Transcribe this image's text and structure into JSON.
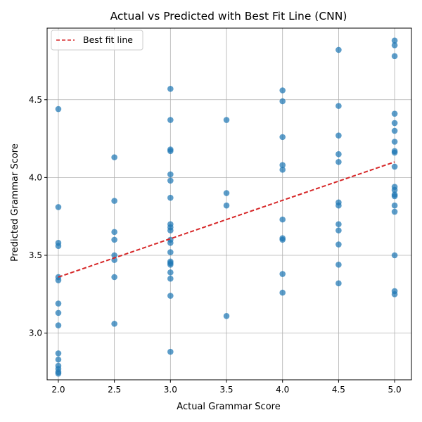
{
  "chart_data": {
    "type": "scatter",
    "title": "Actual vs Predicted with Best Fit Line (CNN)",
    "xlabel": "Actual Grammar Score",
    "ylabel": "Predicted Grammar Score",
    "xlim": [
      1.9,
      5.15
    ],
    "ylim": [
      2.7,
      4.96
    ],
    "x_ticks": [
      2.0,
      2.5,
      3.0,
      3.5,
      4.0,
      4.5,
      5.0
    ],
    "x_tick_labels": [
      "2.0",
      "2.5",
      "3.0",
      "3.5",
      "4.0",
      "4.5",
      "5.0"
    ],
    "y_ticks": [
      3.0,
      3.5,
      4.0,
      4.5
    ],
    "y_tick_labels": [
      "3.0",
      "3.5",
      "4.0",
      "4.5"
    ],
    "grid": true,
    "legend_position": "top-left",
    "point_color": "#1f77b4",
    "line_color": "#d62728",
    "best_fit_line": {
      "label": "Best fit line",
      "x_range": [
        2.0,
        5.0
      ],
      "y_range": [
        3.36,
        4.1
      ]
    },
    "points": [
      [
        2.0,
        4.44
      ],
      [
        2.0,
        3.81
      ],
      [
        2.0,
        3.58
      ],
      [
        2.0,
        3.56
      ],
      [
        2.0,
        3.36
      ],
      [
        2.0,
        3.34
      ],
      [
        2.0,
        3.19
      ],
      [
        2.0,
        3.13
      ],
      [
        2.0,
        3.05
      ],
      [
        2.0,
        2.87
      ],
      [
        2.0,
        2.83
      ],
      [
        2.0,
        2.79
      ],
      [
        2.0,
        2.77
      ],
      [
        2.0,
        2.75
      ],
      [
        2.0,
        2.74
      ],
      [
        2.5,
        4.13
      ],
      [
        2.5,
        3.85
      ],
      [
        2.5,
        3.65
      ],
      [
        2.5,
        3.6
      ],
      [
        2.5,
        3.5
      ],
      [
        2.5,
        3.47
      ],
      [
        2.5,
        3.36
      ],
      [
        2.5,
        3.06
      ],
      [
        3.0,
        4.57
      ],
      [
        3.0,
        4.37
      ],
      [
        3.0,
        4.18
      ],
      [
        3.0,
        4.17
      ],
      [
        3.0,
        4.02
      ],
      [
        3.0,
        3.98
      ],
      [
        3.0,
        3.87
      ],
      [
        3.0,
        3.7
      ],
      [
        3.0,
        3.68
      ],
      [
        3.0,
        3.66
      ],
      [
        3.0,
        3.6
      ],
      [
        3.0,
        3.58
      ],
      [
        3.0,
        3.52
      ],
      [
        3.0,
        3.46
      ],
      [
        3.0,
        3.45
      ],
      [
        3.0,
        3.44
      ],
      [
        3.0,
        3.39
      ],
      [
        3.0,
        3.35
      ],
      [
        3.0,
        3.24
      ],
      [
        3.0,
        2.88
      ],
      [
        3.5,
        4.37
      ],
      [
        3.5,
        3.9
      ],
      [
        3.5,
        3.82
      ],
      [
        3.5,
        3.11
      ],
      [
        4.0,
        4.56
      ],
      [
        4.0,
        4.49
      ],
      [
        4.0,
        4.26
      ],
      [
        4.0,
        4.08
      ],
      [
        4.0,
        4.05
      ],
      [
        4.0,
        3.73
      ],
      [
        4.0,
        3.61
      ],
      [
        4.0,
        3.6
      ],
      [
        4.0,
        3.38
      ],
      [
        4.0,
        3.26
      ],
      [
        4.5,
        4.82
      ],
      [
        4.5,
        4.46
      ],
      [
        4.5,
        4.27
      ],
      [
        4.5,
        4.15
      ],
      [
        4.5,
        4.1
      ],
      [
        4.5,
        3.84
      ],
      [
        4.5,
        3.82
      ],
      [
        4.5,
        3.7
      ],
      [
        4.5,
        3.66
      ],
      [
        4.5,
        3.57
      ],
      [
        4.5,
        3.44
      ],
      [
        4.5,
        3.32
      ],
      [
        5.0,
        4.88
      ],
      [
        5.0,
        4.85
      ],
      [
        5.0,
        4.78
      ],
      [
        5.0,
        4.41
      ],
      [
        5.0,
        4.35
      ],
      [
        5.0,
        4.3
      ],
      [
        5.0,
        4.23
      ],
      [
        5.0,
        4.17
      ],
      [
        5.0,
        4.16
      ],
      [
        5.0,
        4.07
      ],
      [
        5.0,
        3.94
      ],
      [
        5.0,
        3.92
      ],
      [
        5.0,
        3.89
      ],
      [
        5.0,
        3.88
      ],
      [
        5.0,
        3.82
      ],
      [
        5.0,
        3.78
      ],
      [
        5.0,
        3.5
      ],
      [
        5.0,
        3.27
      ],
      [
        5.0,
        3.25
      ]
    ]
  }
}
